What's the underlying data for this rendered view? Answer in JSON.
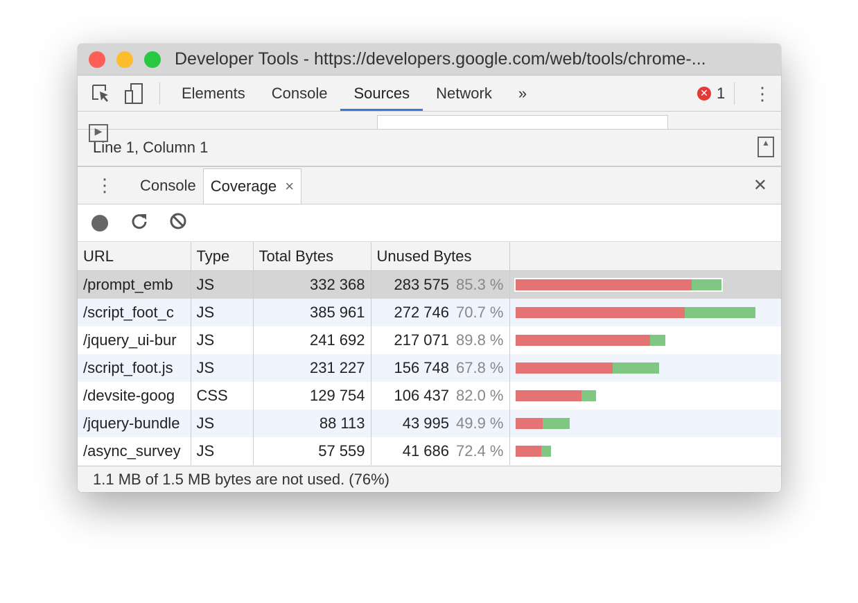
{
  "window": {
    "title": "Developer Tools - https://developers.google.com/web/tools/chrome-..."
  },
  "toolbar": {
    "tabs": [
      "Elements",
      "Console",
      "Sources",
      "Network"
    ],
    "active": "Sources",
    "more": "»",
    "error_count": "1"
  },
  "editor": {
    "status": "Line 1, Column 1"
  },
  "drawer": {
    "tabs": [
      "Console",
      "Coverage"
    ],
    "active": "Coverage",
    "close_tab": "×",
    "close": "✕"
  },
  "coverage": {
    "columns": [
      "URL",
      "Type",
      "Total Bytes",
      "Unused Bytes",
      ""
    ],
    "rows": [
      {
        "url": "/prompt_emb",
        "type": "JS",
        "total": "332 368",
        "unused": "283 575",
        "pct": "85.3 %",
        "total_n": 332368,
        "unused_n": 283575
      },
      {
        "url": "/script_foot_c",
        "type": "JS",
        "total": "385 961",
        "unused": "272 746",
        "pct": "70.7 %",
        "total_n": 385961,
        "unused_n": 272746
      },
      {
        "url": "/jquery_ui-bur",
        "type": "JS",
        "total": "241 692",
        "unused": "217 071",
        "pct": "89.8 %",
        "total_n": 241692,
        "unused_n": 217071
      },
      {
        "url": "/script_foot.js",
        "type": "JS",
        "total": "231 227",
        "unused": "156 748",
        "pct": "67.8 %",
        "total_n": 231227,
        "unused_n": 156748
      },
      {
        "url": "/devsite-goog",
        "type": "CSS",
        "total": "129 754",
        "unused": "106 437",
        "pct": "82.0 %",
        "total_n": 129754,
        "unused_n": 106437
      },
      {
        "url": "/jquery-bundle",
        "type": "JS",
        "total": "88 113",
        "unused": "43 995",
        "pct": "49.9 %",
        "total_n": 88113,
        "unused_n": 43995
      },
      {
        "url": "/async_survey",
        "type": "JS",
        "total": "57 559",
        "unused": "41 686",
        "pct": "72.4 %",
        "total_n": 57559,
        "unused_n": 41686
      }
    ],
    "selected_row": 0,
    "footer": "1.1 MB of 1.5 MB bytes are not used. (76%)"
  },
  "colors": {
    "unused": "#e57373",
    "used": "#81c784",
    "accent": "#3879d9",
    "error": "#e53935"
  }
}
